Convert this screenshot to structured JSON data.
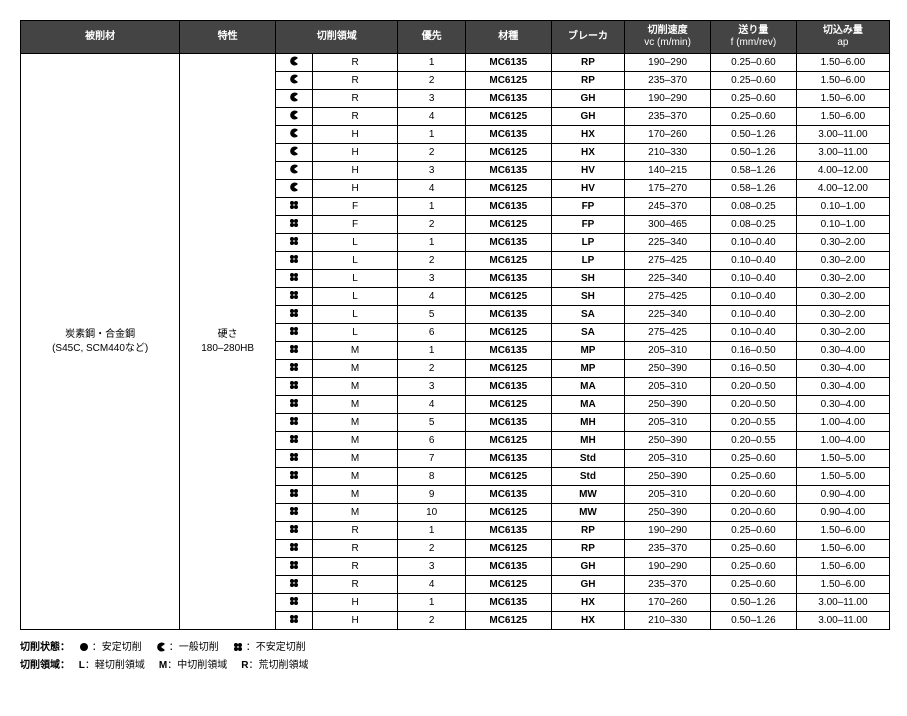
{
  "headers": {
    "material": "被削材",
    "property": "特性",
    "area": "切削領域",
    "priority": "優先",
    "grade": "材種",
    "breaker": "ブレーカ",
    "vc": "切削速度\nvc (m/min)",
    "f": "送り量\nf (mm/rev)",
    "ap": "切込み量\nap"
  },
  "material": {
    "line1": "炭素鋼・合金鋼",
    "line2": "(S45C, SCM440など)"
  },
  "property": {
    "line1": "硬さ",
    "line2": "180–280HB"
  },
  "icons": {
    "solid": "<svg width='10' height='10'><circle cx='5' cy='5' r='4' fill='#000'/></svg>",
    "pac": "<svg width='10' height='10'><path d='M5,5 L9,2 A4.5,4.5 0 1 0 9,8 Z' fill='#000'/></svg>",
    "clover": "<svg width='10' height='10'><g fill='#000'><circle cx='3' cy='3' r='2'/><circle cx='7' cy='3' r='2'/><circle cx='3' cy='7' r='2'/><circle cx='7' cy='7' r='2'/></g></svg>"
  },
  "rows": [
    {
      "i": "pac",
      "a": "R",
      "p": "1",
      "g": "MC6135",
      "b": "RP",
      "v": "190–290",
      "f": "0.25–0.60",
      "ap": "1.50–6.00"
    },
    {
      "i": "pac",
      "a": "R",
      "p": "2",
      "g": "MC6125",
      "b": "RP",
      "v": "235–370",
      "f": "0.25–0.60",
      "ap": "1.50–6.00"
    },
    {
      "i": "pac",
      "a": "R",
      "p": "3",
      "g": "MC6135",
      "b": "GH",
      "v": "190–290",
      "f": "0.25–0.60",
      "ap": "1.50–6.00"
    },
    {
      "i": "pac",
      "a": "R",
      "p": "4",
      "g": "MC6125",
      "b": "GH",
      "v": "235–370",
      "f": "0.25–0.60",
      "ap": "1.50–6.00"
    },
    {
      "i": "pac",
      "a": "H",
      "p": "1",
      "g": "MC6135",
      "b": "HX",
      "v": "170–260",
      "f": "0.50–1.26",
      "ap": "3.00–11.00"
    },
    {
      "i": "pac",
      "a": "H",
      "p": "2",
      "g": "MC6125",
      "b": "HX",
      "v": "210–330",
      "f": "0.50–1.26",
      "ap": "3.00–11.00"
    },
    {
      "i": "pac",
      "a": "H",
      "p": "3",
      "g": "MC6135",
      "b": "HV",
      "v": "140–215",
      "f": "0.58–1.26",
      "ap": "4.00–12.00"
    },
    {
      "i": "pac",
      "a": "H",
      "p": "4",
      "g": "MC6125",
      "b": "HV",
      "v": "175–270",
      "f": "0.58–1.26",
      "ap": "4.00–12.00"
    },
    {
      "i": "clover",
      "a": "F",
      "p": "1",
      "g": "MC6135",
      "b": "FP",
      "v": "245–370",
      "f": "0.08–0.25",
      "ap": "0.10–1.00"
    },
    {
      "i": "clover",
      "a": "F",
      "p": "2",
      "g": "MC6125",
      "b": "FP",
      "v": "300–465",
      "f": "0.08–0.25",
      "ap": "0.10–1.00"
    },
    {
      "i": "clover",
      "a": "L",
      "p": "1",
      "g": "MC6135",
      "b": "LP",
      "v": "225–340",
      "f": "0.10–0.40",
      "ap": "0.30–2.00"
    },
    {
      "i": "clover",
      "a": "L",
      "p": "2",
      "g": "MC6125",
      "b": "LP",
      "v": "275–425",
      "f": "0.10–0.40",
      "ap": "0.30–2.00"
    },
    {
      "i": "clover",
      "a": "L",
      "p": "3",
      "g": "MC6135",
      "b": "SH",
      "v": "225–340",
      "f": "0.10–0.40",
      "ap": "0.30–2.00"
    },
    {
      "i": "clover",
      "a": "L",
      "p": "4",
      "g": "MC6125",
      "b": "SH",
      "v": "275–425",
      "f": "0.10–0.40",
      "ap": "0.30–2.00"
    },
    {
      "i": "clover",
      "a": "L",
      "p": "5",
      "g": "MC6135",
      "b": "SA",
      "v": "225–340",
      "f": "0.10–0.40",
      "ap": "0.30–2.00"
    },
    {
      "i": "clover",
      "a": "L",
      "p": "6",
      "g": "MC6125",
      "b": "SA",
      "v": "275–425",
      "f": "0.10–0.40",
      "ap": "0.30–2.00"
    },
    {
      "i": "clover",
      "a": "M",
      "p": "1",
      "g": "MC6135",
      "b": "MP",
      "v": "205–310",
      "f": "0.16–0.50",
      "ap": "0.30–4.00"
    },
    {
      "i": "clover",
      "a": "M",
      "p": "2",
      "g": "MC6125",
      "b": "MP",
      "v": "250–390",
      "f": "0.16–0.50",
      "ap": "0.30–4.00"
    },
    {
      "i": "clover",
      "a": "M",
      "p": "3",
      "g": "MC6135",
      "b": "MA",
      "v": "205–310",
      "f": "0.20–0.50",
      "ap": "0.30–4.00"
    },
    {
      "i": "clover",
      "a": "M",
      "p": "4",
      "g": "MC6125",
      "b": "MA",
      "v": "250–390",
      "f": "0.20–0.50",
      "ap": "0.30–4.00"
    },
    {
      "i": "clover",
      "a": "M",
      "p": "5",
      "g": "MC6135",
      "b": "MH",
      "v": "205–310",
      "f": "0.20–0.55",
      "ap": "1.00–4.00"
    },
    {
      "i": "clover",
      "a": "M",
      "p": "6",
      "g": "MC6125",
      "b": "MH",
      "v": "250–390",
      "f": "0.20–0.55",
      "ap": "1.00–4.00"
    },
    {
      "i": "clover",
      "a": "M",
      "p": "7",
      "g": "MC6135",
      "b": "Std",
      "v": "205–310",
      "f": "0.25–0.60",
      "ap": "1.50–5.00"
    },
    {
      "i": "clover",
      "a": "M",
      "p": "8",
      "g": "MC6125",
      "b": "Std",
      "v": "250–390",
      "f": "0.25–0.60",
      "ap": "1.50–5.00"
    },
    {
      "i": "clover",
      "a": "M",
      "p": "9",
      "g": "MC6135",
      "b": "MW",
      "v": "205–310",
      "f": "0.20–0.60",
      "ap": "0.90–4.00"
    },
    {
      "i": "clover",
      "a": "M",
      "p": "10",
      "g": "MC6125",
      "b": "MW",
      "v": "250–390",
      "f": "0.20–0.60",
      "ap": "0.90–4.00"
    },
    {
      "i": "clover",
      "a": "R",
      "p": "1",
      "g": "MC6135",
      "b": "RP",
      "v": "190–290",
      "f": "0.25–0.60",
      "ap": "1.50–6.00"
    },
    {
      "i": "clover",
      "a": "R",
      "p": "2",
      "g": "MC6125",
      "b": "RP",
      "v": "235–370",
      "f": "0.25–0.60",
      "ap": "1.50–6.00"
    },
    {
      "i": "clover",
      "a": "R",
      "p": "3",
      "g": "MC6135",
      "b": "GH",
      "v": "190–290",
      "f": "0.25–0.60",
      "ap": "1.50–6.00"
    },
    {
      "i": "clover",
      "a": "R",
      "p": "4",
      "g": "MC6125",
      "b": "GH",
      "v": "235–370",
      "f": "0.25–0.60",
      "ap": "1.50–6.00"
    },
    {
      "i": "clover",
      "a": "H",
      "p": "1",
      "g": "MC6135",
      "b": "HX",
      "v": "170–260",
      "f": "0.50–1.26",
      "ap": "3.00–11.00"
    },
    {
      "i": "clover",
      "a": "H",
      "p": "2",
      "g": "MC6125",
      "b": "HX",
      "v": "210–330",
      "f": "0.50–1.26",
      "ap": "3.00–11.00"
    }
  ],
  "legend": {
    "state_label": "切削状態：",
    "state": [
      {
        "icon": "solid",
        "text": "：安定切削"
      },
      {
        "icon": "pac",
        "text": "：一般切削"
      },
      {
        "icon": "clover",
        "text": "：不安定切削"
      }
    ],
    "area_label": "切削領域：",
    "area": [
      {
        "k": "L",
        "text": "：軽切削領域"
      },
      {
        "k": "M",
        "text": "：中切削領域"
      },
      {
        "k": "R",
        "text": "：荒切削領域"
      }
    ]
  }
}
